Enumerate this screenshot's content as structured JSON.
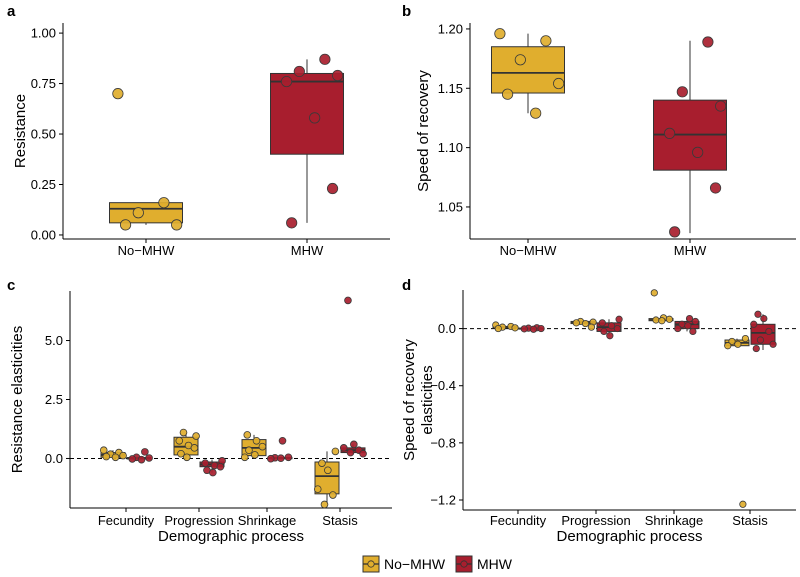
{
  "legend": {
    "entries": [
      {
        "name": "No−MHW",
        "color": "#E0AE2E"
      },
      {
        "name": "MHW",
        "color": "#A81E2E"
      }
    ]
  },
  "chart_data": [
    {
      "panel": "a",
      "type": "box",
      "title": "",
      "xlabel": "",
      "ylabel": "Resistance",
      "ylim": [
        -0.02,
        1.05
      ],
      "yticks": [
        0.0,
        0.25,
        0.5,
        0.75,
        1.0
      ],
      "ytick_labels": [
        "0.00",
        "0.25",
        "0.50",
        "0.75",
        "1.00"
      ],
      "zero_line": false,
      "categories": [
        "No−MHW",
        "MHW"
      ],
      "series": [
        {
          "name": "No−MHW",
          "color": "#E0AE2E",
          "position": 0,
          "box": {
            "min": 0.05,
            "q1": 0.06,
            "median": 0.13,
            "q3": 0.16,
            "max": 0.16
          },
          "points": [
            0.7,
            0.16,
            0.11,
            0.05,
            0.05
          ]
        },
        {
          "name": "MHW",
          "color": "#A81E2E",
          "position": 1,
          "box": {
            "min": 0.06,
            "q1": 0.4,
            "median": 0.76,
            "q3": 0.8,
            "max": 0.87
          },
          "points": [
            0.87,
            0.81,
            0.79,
            0.76,
            0.58,
            0.23,
            0.06
          ]
        }
      ]
    },
    {
      "panel": "b",
      "type": "box",
      "title": "",
      "xlabel": "",
      "ylabel": "Speed of recovery",
      "ylim": [
        1.023,
        1.205
      ],
      "yticks": [
        1.05,
        1.1,
        1.15,
        1.2
      ],
      "ytick_labels": [
        "1.05",
        "1.10",
        "1.15",
        "1.20"
      ],
      "zero_line": false,
      "categories": [
        "No−MHW",
        "MHW"
      ],
      "series": [
        {
          "name": "No−MHW",
          "color": "#E0AE2E",
          "position": 0,
          "box": {
            "min": 1.129,
            "q1": 1.146,
            "median": 1.163,
            "q3": 1.185,
            "max": 1.196
          },
          "points": [
            1.196,
            1.19,
            1.174,
            1.154,
            1.145,
            1.129
          ]
        },
        {
          "name": "MHW",
          "color": "#A81E2E",
          "position": 1,
          "box": {
            "min": 1.028,
            "q1": 1.081,
            "median": 1.111,
            "q3": 1.14,
            "max": 1.19
          },
          "points": [
            1.189,
            1.147,
            1.135,
            1.112,
            1.096,
            1.066,
            1.029
          ]
        }
      ]
    },
    {
      "panel": "c",
      "type": "box",
      "title": "",
      "xlabel": "Demographic process",
      "ylabel": "Resistance elasticities",
      "ylim": [
        -2.1,
        7.1
      ],
      "yticks": [
        0.0,
        2.5,
        5.0
      ],
      "ytick_labels": [
        "0.0",
        "2.5",
        "5.0"
      ],
      "zero_line": true,
      "categories": [
        "Fecundity",
        "Progression",
        "Shrinkage",
        "Stasis"
      ],
      "series": [
        {
          "name": "No−MHW",
          "color": "#E0AE2E",
          "position": 0,
          "box": {
            "min": 0.0,
            "q1": 0.05,
            "median": 0.15,
            "q3": 0.25,
            "max": 0.35
          },
          "points": [
            0.35,
            0.25,
            0.18,
            0.12,
            0.08,
            0.05
          ]
        },
        {
          "name": "MHW",
          "color": "#A81E2E",
          "position": 0,
          "box": {
            "min": -0.05,
            "q1": -0.02,
            "median": 0.0,
            "q3": 0.04,
            "max": 0.06
          },
          "points": [
            0.28,
            0.05,
            0.02,
            -0.02,
            -0.05
          ]
        },
        {
          "name": "No−MHW",
          "color": "#E0AE2E",
          "position": 1,
          "box": {
            "min": 0.0,
            "q1": 0.15,
            "median": 0.5,
            "q3": 0.9,
            "max": 1.05
          },
          "points": [
            1.1,
            0.95,
            0.75,
            0.55,
            0.45,
            0.2,
            0.05
          ]
        },
        {
          "name": "MHW",
          "color": "#A81E2E",
          "position": 1,
          "box": {
            "min": -0.6,
            "q1": -0.35,
            "median": -0.25,
            "q3": -0.15,
            "max": -0.05
          },
          "points": [
            -0.1,
            -0.2,
            -0.3,
            -0.35,
            -0.5,
            -0.6
          ]
        },
        {
          "name": "No−MHW",
          "color": "#E0AE2E",
          "position": 2,
          "box": {
            "min": 0.0,
            "q1": 0.12,
            "median": 0.45,
            "q3": 0.8,
            "max": 1.0
          },
          "points": [
            1.0,
            0.75,
            0.5,
            0.35,
            0.15,
            0.05
          ]
        },
        {
          "name": "MHW",
          "color": "#A81E2E",
          "position": 2,
          "box": {
            "min": -0.03,
            "q1": -0.01,
            "median": 0.02,
            "q3": 0.04,
            "max": 0.06
          },
          "points": [
            0.75,
            0.05,
            0.03,
            0.01,
            -0.01
          ]
        },
        {
          "name": "No−MHW",
          "color": "#E0AE2E",
          "position": 3,
          "box": {
            "min": -1.9,
            "q1": -1.5,
            "median": -0.75,
            "q3": -0.15,
            "max": 0.3
          },
          "points": [
            0.3,
            -0.2,
            -0.5,
            -1.3,
            -1.55,
            -1.95
          ]
        },
        {
          "name": "MHW",
          "color": "#A81E2E",
          "position": 3,
          "box": {
            "min": 0.15,
            "q1": 0.25,
            "median": 0.35,
            "q3": 0.45,
            "max": 0.6
          },
          "points": [
            6.7,
            0.6,
            0.45,
            0.35,
            0.25,
            0.2
          ]
        }
      ]
    },
    {
      "panel": "d",
      "type": "box",
      "title": "",
      "xlabel": "Demographic process",
      "ylabel": "Speed of recovery elasticities",
      "ylabel_lines": [
        "Speed of recovery",
        "elasticities"
      ],
      "ylim": [
        -1.27,
        0.27
      ],
      "yticks": [
        -1.2,
        -0.8,
        -0.4,
        0.0
      ],
      "ytick_labels": [
        "−1.2",
        "−0.8",
        "−0.4",
        "0.0"
      ],
      "zero_line": true,
      "categories": [
        "Fecundity",
        "Progression",
        "Shrinkage",
        "Stasis"
      ],
      "series": [
        {
          "name": "No−MHW",
          "color": "#E0AE2E",
          "position": 0,
          "box": {
            "min": 0.0,
            "q1": 0.005,
            "median": 0.01,
            "q3": 0.015,
            "max": 0.02
          },
          "points": [
            0.025,
            0.015,
            0.01,
            0.005,
            0.0
          ]
        },
        {
          "name": "MHW",
          "color": "#A81E2E",
          "position": 0,
          "box": {
            "min": -0.005,
            "q1": -0.002,
            "median": 0.0,
            "q3": 0.003,
            "max": 0.006
          },
          "points": [
            0.006,
            0.003,
            0.0,
            -0.002,
            -0.005
          ]
        },
        {
          "name": "No−MHW",
          "color": "#E0AE2E",
          "position": 1,
          "box": {
            "min": 0.03,
            "q1": 0.035,
            "median": 0.045,
            "q3": 0.05,
            "max": 0.055
          },
          "points": [
            0.05,
            0.045,
            0.04,
            0.035,
            0.01
          ]
        },
        {
          "name": "MHW",
          "color": "#A81E2E",
          "position": 1,
          "box": {
            "min": -0.05,
            "q1": -0.02,
            "median": 0.01,
            "q3": 0.04,
            "max": 0.065
          },
          "points": [
            0.065,
            0.04,
            0.02,
            0.0,
            -0.02,
            -0.05
          ]
        },
        {
          "name": "No−MHW",
          "color": "#E0AE2E",
          "position": 2,
          "box": {
            "min": 0.05,
            "q1": 0.055,
            "median": 0.06,
            "q3": 0.07,
            "max": 0.075
          },
          "points": [
            0.25,
            0.075,
            0.065,
            0.06,
            0.055
          ]
        },
        {
          "name": "MHW",
          "color": "#A81E2E",
          "position": 2,
          "box": {
            "min": -0.02,
            "q1": 0.0,
            "median": 0.03,
            "q3": 0.05,
            "max": 0.07
          },
          "points": [
            0.07,
            0.05,
            0.03,
            0.02,
            0.0,
            -0.02
          ]
        },
        {
          "name": "No−MHW",
          "color": "#E0AE2E",
          "position": 3,
          "box": {
            "min": -0.13,
            "q1": -0.12,
            "median": -0.1,
            "q3": -0.08,
            "max": -0.07
          },
          "points": [
            -0.07,
            -0.09,
            -0.11,
            -0.12,
            -1.23
          ]
        },
        {
          "name": "MHW",
          "color": "#A81E2E",
          "position": 3,
          "box": {
            "min": -0.15,
            "q1": -0.11,
            "median": -0.03,
            "q3": 0.03,
            "max": 0.1
          },
          "points": [
            0.1,
            0.07,
            0.03,
            -0.02,
            -0.08,
            -0.11,
            -0.14
          ]
        }
      ]
    }
  ]
}
